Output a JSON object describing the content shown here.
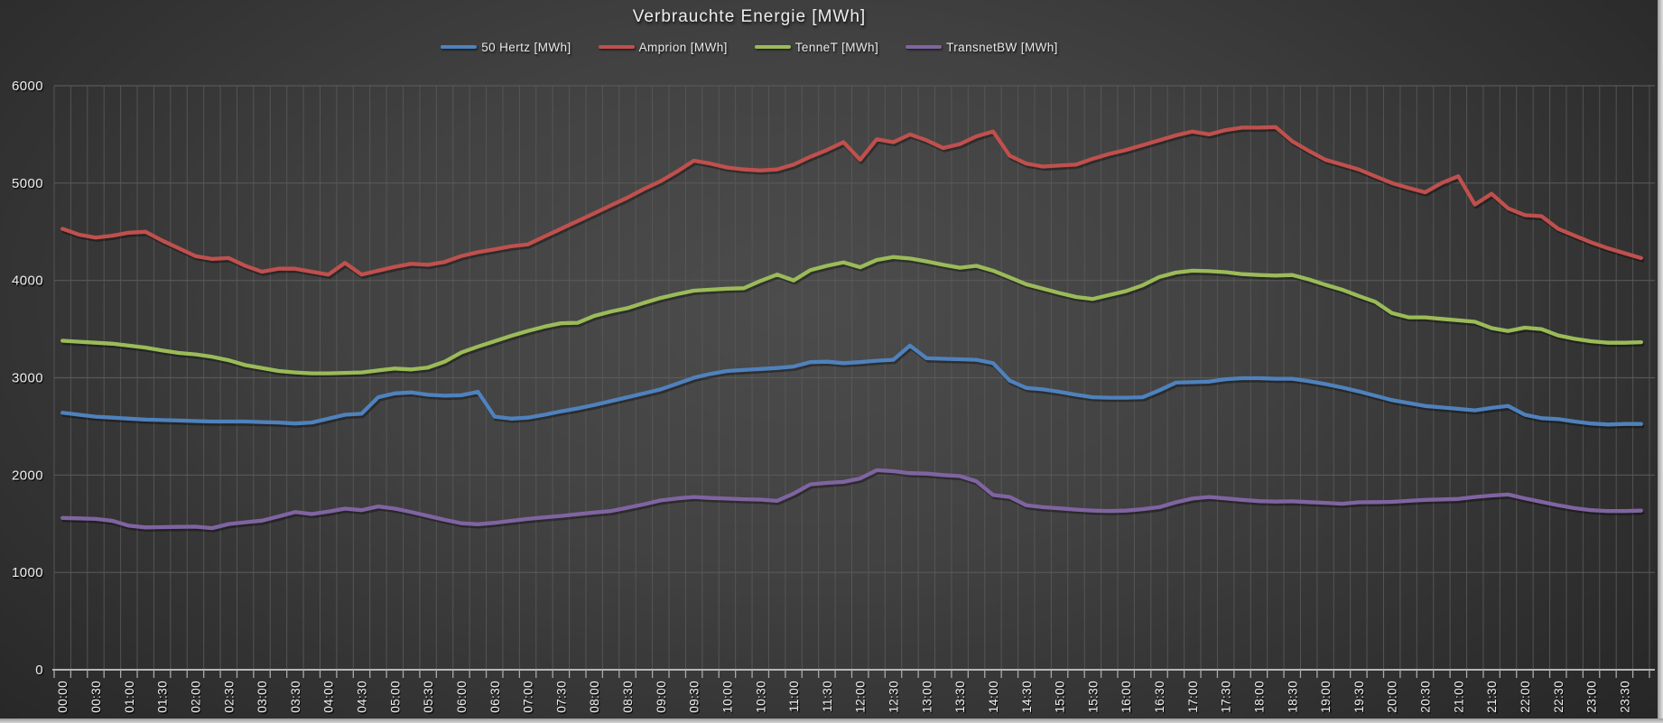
{
  "title": "Verbrauchte Energie [MWh]",
  "style": {
    "background_center": "#4c4c4c",
    "background_edge": "#242424",
    "gridline_color": "#5a5a5a",
    "axis_line_color": "#c9c9c9",
    "tick_color": "#aaaaaa",
    "text_color": "#ededed"
  },
  "legend": {
    "items": [
      {
        "label": "50 Hertz [MWh]",
        "color": "#4F81BD"
      },
      {
        "label": "Amprion [MWh]",
        "color": "#C0504D"
      },
      {
        "label": "TenneT [MWh]",
        "color": "#9BBB59"
      },
      {
        "label": "TransnetBW [MWh]",
        "color": "#8064A2"
      }
    ]
  },
  "chart_data": {
    "type": "line",
    "title": "Verbrauchte Energie [MWh]",
    "xlabel": "",
    "ylabel": "",
    "ylim": [
      0,
      6000
    ],
    "y_tick_step": 1000,
    "y_tick_labels": [
      "0",
      "1000",
      "2000",
      "3000",
      "4000",
      "5000",
      "6000"
    ],
    "grid": "both",
    "legend_position": "top",
    "x_interval_minutes": 15,
    "x_label_every_n_points": 2,
    "x_tick_labels": [
      "00:00",
      "00:30",
      "01:00",
      "01:30",
      "02:00",
      "02:30",
      "03:00",
      "03:30",
      "04:00",
      "04:30",
      "05:00",
      "05:30",
      "06:00",
      "06:30",
      "07:00",
      "07:30",
      "08:00",
      "08:30",
      "09:00",
      "09:30",
      "10:00",
      "10:30",
      "11:00",
      "11:30",
      "12:00",
      "12:30",
      "13:00",
      "13:30",
      "14:00",
      "14:30",
      "15:00",
      "15:30",
      "16:00",
      "16:30",
      "17:00",
      "17:30",
      "18:00",
      "18:30",
      "19:00",
      "19:30",
      "20:00",
      "20:30",
      "21:00",
      "21:30",
      "22:00",
      "22:30",
      "23:00",
      "23:30"
    ],
    "series": [
      {
        "name": "50 Hertz [MWh]",
        "color": "#4F81BD",
        "values": [
          2640,
          2620,
          2600,
          2590,
          2580,
          2570,
          2565,
          2560,
          2555,
          2550,
          2550,
          2550,
          2545,
          2540,
          2530,
          2540,
          2580,
          2620,
          2630,
          2800,
          2840,
          2850,
          2825,
          2815,
          2820,
          2855,
          2600,
          2580,
          2590,
          2620,
          2655,
          2685,
          2720,
          2760,
          2800,
          2840,
          2880,
          2940,
          3000,
          3040,
          3070,
          3080,
          3090,
          3100,
          3115,
          3160,
          3165,
          3150,
          3160,
          3175,
          3185,
          3330,
          3200,
          3195,
          3190,
          3185,
          3150,
          2970,
          2895,
          2880,
          2855,
          2825,
          2800,
          2795,
          2795,
          2800,
          2870,
          2950,
          2955,
          2960,
          2985,
          2995,
          2995,
          2990,
          2990,
          2965,
          2935,
          2900,
          2860,
          2815,
          2770,
          2740,
          2710,
          2695,
          2680,
          2665,
          2690,
          2710,
          2620,
          2585,
          2575,
          2550,
          2530,
          2520,
          2525,
          2525
        ]
      },
      {
        "name": "Amprion [MWh]",
        "color": "#C0504D",
        "values": [
          4530,
          4470,
          4440,
          4460,
          4490,
          4500,
          4410,
          4330,
          4250,
          4220,
          4230,
          4150,
          4090,
          4120,
          4120,
          4090,
          4060,
          4180,
          4060,
          4100,
          4140,
          4170,
          4160,
          4190,
          4250,
          4290,
          4320,
          4350,
          4370,
          4450,
          4530,
          4610,
          4690,
          4770,
          4850,
          4940,
          5020,
          5120,
          5230,
          5200,
          5160,
          5140,
          5130,
          5140,
          5190,
          5270,
          5340,
          5420,
          5240,
          5450,
          5420,
          5500,
          5440,
          5360,
          5400,
          5480,
          5530,
          5280,
          5200,
          5170,
          5180,
          5190,
          5250,
          5300,
          5340,
          5390,
          5440,
          5490,
          5530,
          5500,
          5545,
          5570,
          5570,
          5575,
          5430,
          5330,
          5240,
          5190,
          5140,
          5070,
          5000,
          4950,
          4905,
          5000,
          5070,
          4780,
          4890,
          4740,
          4670,
          4660,
          4530,
          4460,
          4390,
          4330,
          4280,
          4230
        ]
      },
      {
        "name": "TenneT [MWh]",
        "color": "#9BBB59",
        "values": [
          3380,
          3370,
          3360,
          3350,
          3330,
          3310,
          3280,
          3255,
          3240,
          3215,
          3180,
          3130,
          3100,
          3070,
          3055,
          3045,
          3045,
          3050,
          3055,
          3075,
          3095,
          3085,
          3105,
          3165,
          3260,
          3320,
          3375,
          3430,
          3480,
          3525,
          3560,
          3565,
          3635,
          3680,
          3715,
          3770,
          3820,
          3860,
          3895,
          3905,
          3915,
          3920,
          3995,
          4060,
          4000,
          4105,
          4150,
          4185,
          4135,
          4210,
          4240,
          4225,
          4195,
          4160,
          4130,
          4150,
          4100,
          4030,
          3960,
          3915,
          3870,
          3830,
          3810,
          3850,
          3890,
          3950,
          4035,
          4080,
          4100,
          4095,
          4085,
          4065,
          4055,
          4050,
          4055,
          4010,
          3955,
          3905,
          3840,
          3780,
          3665,
          3620,
          3620,
          3605,
          3590,
          3575,
          3510,
          3480,
          3515,
          3500,
          3435,
          3400,
          3375,
          3360,
          3360,
          3365
        ]
      },
      {
        "name": "TransnetBW [MWh]",
        "color": "#8064A2",
        "values": [
          1560,
          1555,
          1550,
          1530,
          1480,
          1462,
          1465,
          1468,
          1470,
          1455,
          1497,
          1515,
          1532,
          1575,
          1620,
          1600,
          1625,
          1655,
          1640,
          1678,
          1655,
          1620,
          1580,
          1540,
          1505,
          1495,
          1510,
          1530,
          1550,
          1565,
          1580,
          1598,
          1615,
          1630,
          1665,
          1700,
          1740,
          1760,
          1775,
          1765,
          1758,
          1752,
          1748,
          1735,
          1810,
          1905,
          1920,
          1930,
          1965,
          2050,
          2040,
          2020,
          2015,
          2000,
          1990,
          1935,
          1795,
          1775,
          1690,
          1670,
          1658,
          1645,
          1635,
          1630,
          1635,
          1650,
          1670,
          1720,
          1758,
          1775,
          1760,
          1745,
          1732,
          1728,
          1730,
          1722,
          1715,
          1705,
          1720,
          1722,
          1725,
          1735,
          1745,
          1750,
          1755,
          1775,
          1790,
          1800,
          1760,
          1725,
          1690,
          1660,
          1640,
          1630,
          1630,
          1635
        ]
      }
    ]
  }
}
